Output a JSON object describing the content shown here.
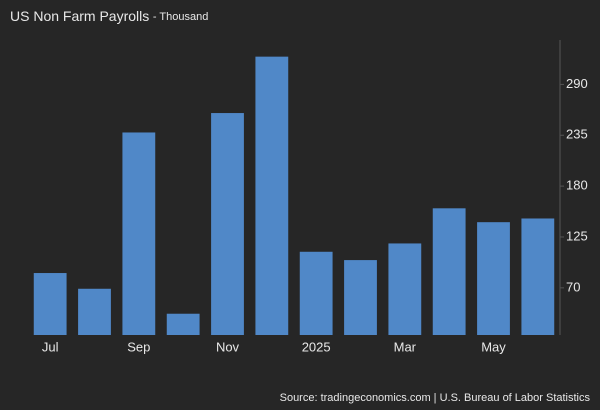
{
  "chart_data": {
    "type": "bar",
    "title": "US Non Farm Payrolls",
    "subtitle": "- Thousand",
    "categories": [
      "Jul",
      null,
      "Sep",
      null,
      "Nov",
      null,
      "2025",
      null,
      "Mar",
      null,
      "May",
      null
    ],
    "values": [
      86,
      69,
      238,
      42,
      259,
      320,
      109,
      100,
      118,
      156,
      141,
      145
    ],
    "color": "#5088c8",
    "ylim": [
      19,
      338
    ],
    "yticks": [
      70,
      125,
      180,
      235,
      290
    ],
    "source": "Source: tradingeconomics.com | U.S. Bureau of Labor Statistics"
  }
}
